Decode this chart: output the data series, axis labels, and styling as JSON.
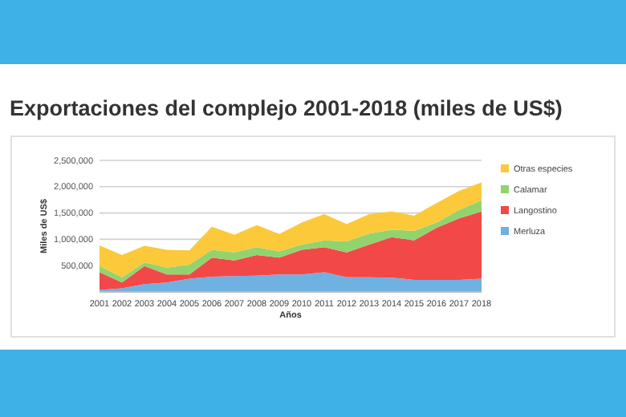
{
  "chart_data": {
    "type": "area",
    "stacked": true,
    "title": "Exportaciones del complejo 2001-2018 (miles de US$)",
    "xlabel": "Años",
    "ylabel": "Miles de US$",
    "categories": [
      "2001",
      "2002",
      "2003",
      "2004",
      "2005",
      "2006",
      "2007",
      "2008",
      "2009",
      "2010",
      "2011",
      "2012",
      "2013",
      "2014",
      "2015",
      "2016",
      "2017",
      "2018"
    ],
    "series": [
      {
        "name": "Merluza",
        "color": "#6fb2e2",
        "values": [
          40000,
          70000,
          150000,
          180000,
          250000,
          290000,
          300000,
          310000,
          330000,
          330000,
          375000,
          280000,
          280000,
          270000,
          230000,
          230000,
          230000,
          250000
        ]
      },
      {
        "name": "Langostino",
        "color": "#f24848",
        "values": [
          335000,
          110000,
          340000,
          150000,
          80000,
          360000,
          300000,
          390000,
          320000,
          470000,
          475000,
          470000,
          620000,
          770000,
          750000,
          990000,
          1170000,
          1280000
        ]
      },
      {
        "name": "Calamar",
        "color": "#92d36e",
        "values": [
          115000,
          100000,
          70000,
          130000,
          190000,
          150000,
          150000,
          150000,
          120000,
          100000,
          130000,
          210000,
          210000,
          140000,
          180000,
          100000,
          160000,
          210000
        ]
      },
      {
        "name": "Otras especies",
        "color": "#fbc93a",
        "values": [
          395000,
          420000,
          315000,
          340000,
          270000,
          440000,
          335000,
          420000,
          330000,
          420000,
          500000,
          330000,
          370000,
          350000,
          290000,
          370000,
          360000,
          340000
        ]
      }
    ],
    "ylim": [
      0,
      2500000
    ],
    "yticks": [
      {
        "value": 500000,
        "label": "500,000"
      },
      {
        "value": 1000000,
        "label": "1,000,000"
      },
      {
        "value": 1500000,
        "label": "1,500,000"
      },
      {
        "value": 2000000,
        "label": "2,000,000"
      },
      {
        "value": 2500000,
        "label": "2,500,000"
      }
    ],
    "grid": "y",
    "legend": "right"
  }
}
